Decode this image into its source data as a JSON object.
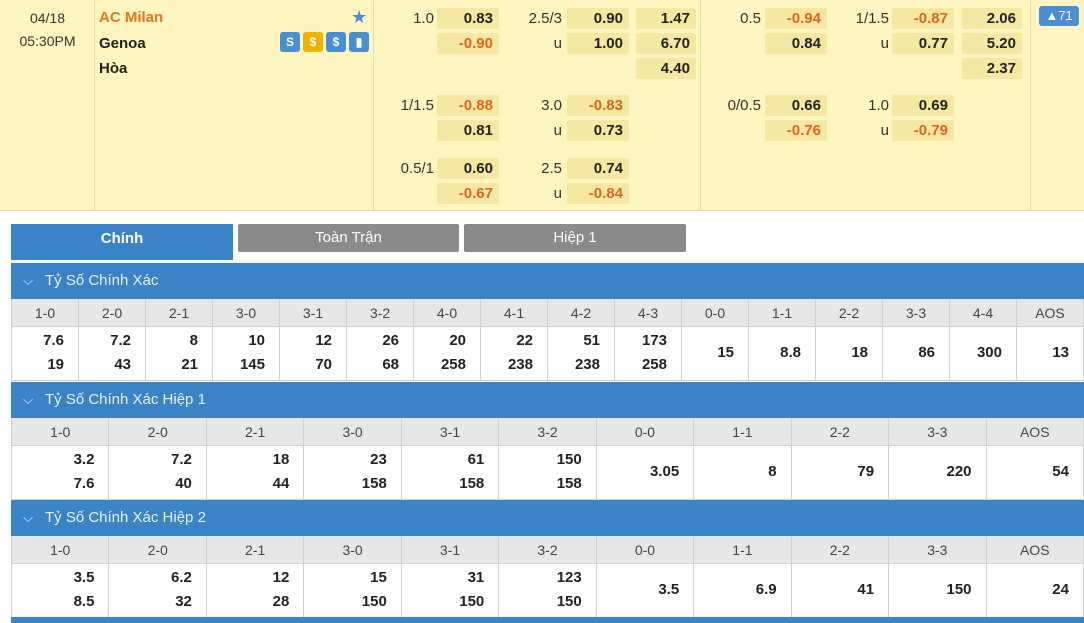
{
  "match": {
    "date": "04/18",
    "time": "05:30PM",
    "home": "AC Milan",
    "away": "Genoa",
    "draw": "Hòa",
    "icons": [
      {
        "name": "stats-s-icon",
        "glyph": "S",
        "color": "#4a8fd1"
      },
      {
        "name": "coin-icon",
        "glyph": "$",
        "color": "#f0b400"
      },
      {
        "name": "dollar-icon",
        "glyph": "$",
        "color": "#4a8fd1"
      },
      {
        "name": "bar-chart-icon",
        "glyph": "▮",
        "color": "#4a8fd1"
      }
    ],
    "more_count": "▲71"
  },
  "odds": {
    "hcp": [
      {
        "line": "1.0",
        "h": "0.83",
        "a": "-0.90",
        "ou_line": "2.5/3",
        "over": "0.90",
        "under_lbl": "u",
        "under": "1.00",
        "x": [
          "1.47",
          "6.70",
          "4.40"
        ]
      },
      {
        "line": "1/1.5",
        "h": "-0.88",
        "a": "0.81",
        "ou_line": "3.0",
        "over": "-0.83",
        "under_lbl": "u",
        "under": "0.73"
      },
      {
        "line": "0.5/1",
        "h": "0.60",
        "a": "-0.67",
        "ou_line": "2.5",
        "over": "0.74",
        "under_lbl": "u",
        "under": "-0.84"
      }
    ],
    "h1": [
      {
        "line": "0.5",
        "h": "-0.94",
        "a": "0.84",
        "ou_line": "1/1.5",
        "over": "-0.87",
        "under_lbl": "u",
        "under": "0.77",
        "x": [
          "2.06",
          "5.20",
          "2.37"
        ]
      },
      {
        "line": "0/0.5",
        "h": "0.66",
        "a": "-0.76",
        "ou_line": "1.0",
        "over": "0.69",
        "under_lbl": "u",
        "under": "-0.79"
      }
    ]
  },
  "tabs": [
    "Chính",
    "Toàn Trận",
    "Hiệp 1"
  ],
  "sections": [
    {
      "title": "Tỷ Số Chính Xác",
      "headers": [
        "1-0",
        "2-0",
        "2-1",
        "3-0",
        "3-1",
        "3-2",
        "4-0",
        "4-1",
        "4-2",
        "4-3",
        "0-0",
        "1-1",
        "2-2",
        "3-3",
        "4-4",
        "AOS"
      ],
      "values": [
        [
          "7.6",
          "19"
        ],
        [
          "7.2",
          "43"
        ],
        [
          "8",
          "21"
        ],
        [
          "10",
          "145"
        ],
        [
          "12",
          "70"
        ],
        [
          "26",
          "68"
        ],
        [
          "20",
          "258"
        ],
        [
          "22",
          "238"
        ],
        [
          "51",
          "238"
        ],
        [
          "173",
          "258"
        ],
        [
          "15"
        ],
        [
          "8.8"
        ],
        [
          "18"
        ],
        [
          "86"
        ],
        [
          "300"
        ],
        [
          "13"
        ]
      ]
    },
    {
      "title": "Tỷ Số Chính Xác Hiệp 1",
      "headers": [
        "1-0",
        "2-0",
        "2-1",
        "3-0",
        "3-1",
        "3-2",
        "0-0",
        "1-1",
        "2-2",
        "3-3",
        "AOS"
      ],
      "values": [
        [
          "3.2",
          "7.6"
        ],
        [
          "7.2",
          "40"
        ],
        [
          "18",
          "44"
        ],
        [
          "23",
          "158"
        ],
        [
          "61",
          "158"
        ],
        [
          "150",
          "158"
        ],
        [
          "3.05"
        ],
        [
          "8"
        ],
        [
          "79"
        ],
        [
          "220"
        ],
        [
          "54"
        ]
      ]
    },
    {
      "title": "Tỷ Số Chính Xác Hiệp 2",
      "headers": [
        "1-0",
        "2-0",
        "2-1",
        "3-0",
        "3-1",
        "3-2",
        "0-0",
        "1-1",
        "2-2",
        "3-3",
        "AOS"
      ],
      "values": [
        [
          "3.5",
          "8.5"
        ],
        [
          "6.2",
          "32"
        ],
        [
          "12",
          "28"
        ],
        [
          "15",
          "150"
        ],
        [
          "31",
          "150"
        ],
        [
          "123",
          "150"
        ],
        [
          "3.5"
        ],
        [
          "6.9"
        ],
        [
          "41"
        ],
        [
          "150"
        ],
        [
          "24"
        ]
      ]
    }
  ]
}
